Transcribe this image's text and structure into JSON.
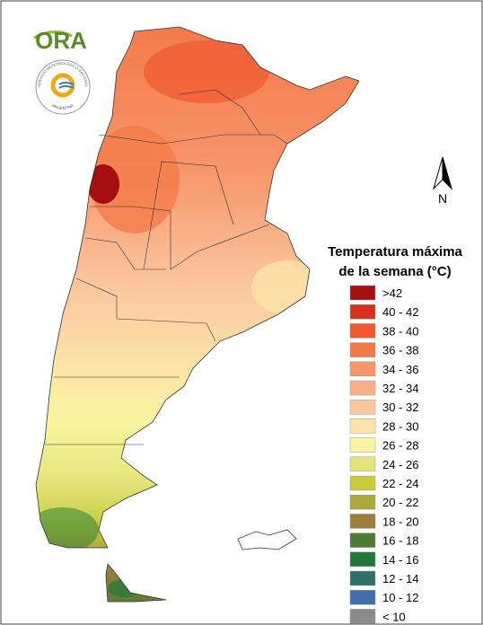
{
  "logo": {
    "text": "ORA"
  },
  "emblem": {
    "top": "SERVICIO METEOROLÓGICO NACIONAL",
    "bottom": "ARGENTINA"
  },
  "north": "N",
  "legend": {
    "title": [
      "Temperatura máxima",
      "de la semana (°C)"
    ],
    "items": [
      {
        "label": ">42",
        "color": "#a50f0f"
      },
      {
        "label": "40 - 42",
        "color": "#d7301f"
      },
      {
        "label": "38 - 40",
        "color": "#f0592f"
      },
      {
        "label": "36 - 38",
        "color": "#f47a4a"
      },
      {
        "label": "34 - 36",
        "color": "#f7956a"
      },
      {
        "label": "32 - 34",
        "color": "#f9ae84"
      },
      {
        "label": "30 - 32",
        "color": "#fbc79e"
      },
      {
        "label": "28 - 30",
        "color": "#fde3a7"
      },
      {
        "label": "26 - 28",
        "color": "#f9f5a0"
      },
      {
        "label": "24 - 26",
        "color": "#e3e57a"
      },
      {
        "label": "22 - 24",
        "color": "#c7cb3d"
      },
      {
        "label": "20 - 22",
        "color": "#ada83a"
      },
      {
        "label": "18 - 20",
        "color": "#9b7f3a"
      },
      {
        "label": "16 - 18",
        "color": "#4f7a32"
      },
      {
        "label": "14 - 16",
        "color": "#1f7a3a"
      },
      {
        "label": "12 - 14",
        "color": "#2f6f6a"
      },
      {
        "label": "10 - 12",
        "color": "#3f6fa8"
      },
      {
        "label": "< 10",
        "color": "#8c8c8c"
      }
    ]
  }
}
